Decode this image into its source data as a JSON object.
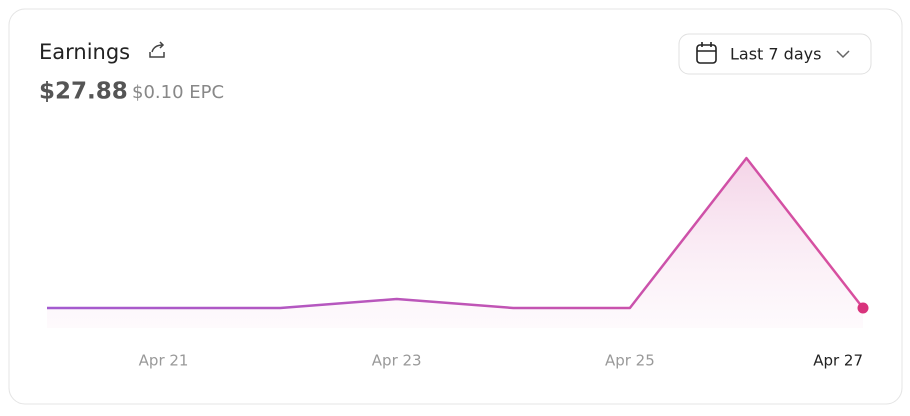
{
  "header": {
    "title": "Earnings",
    "total": "$27.88",
    "epc": "$0.10 EPC",
    "range": "Last 7 days"
  },
  "chart_data": {
    "type": "area",
    "categories": [
      null,
      "Apr 21",
      null,
      "Apr 23",
      null,
      "Apr 25",
      null,
      "Apr 27"
    ],
    "values": [
      0,
      0,
      0,
      1.58,
      0,
      0,
      26.3,
      0
    ],
    "ylim": [
      0,
      30
    ],
    "line_color_start": "#a35bd0",
    "line_color_end": "#d94f9e",
    "marker_color": "#d8337c"
  }
}
